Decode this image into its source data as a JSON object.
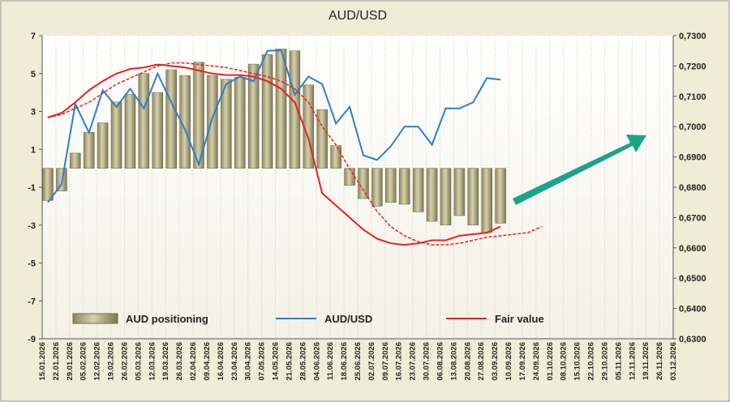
{
  "chart_data": {
    "type": "combo",
    "title": "AUD/USD",
    "categories": [
      "15.01.2026",
      "22.01.2026",
      "29.01.2026",
      "05.02.2026",
      "12.02.2026",
      "19.02.2026",
      "26.02.2026",
      "05.03.2026",
      "12.03.2026",
      "19.03.2026",
      "26.03.2026",
      "02.04.2026",
      "09.04.2026",
      "16.04.2026",
      "23.04.2026",
      "30.04.2026",
      "07.05.2026",
      "14.05.2026",
      "21.05.2026",
      "28.05.2026",
      "04.06.2026",
      "11.06.2026",
      "18.06.2026",
      "25.06.2026",
      "02.07.2026",
      "09.07.2026",
      "16.07.2026",
      "23.07.2026",
      "30.07.2026",
      "06.08.2026",
      "13.08.2026",
      "20.08.2026",
      "27.08.2026",
      "03.09.2026",
      "10.09.2026",
      "17.09.2026",
      "24.09.2026",
      "01.10.2026",
      "08.10.2026",
      "15.10.2026",
      "22.10.2026",
      "29.10.2026",
      "05.11.2026",
      "12.11.2026",
      "19.11.2026",
      "26.11.2026",
      "03.12.2026"
    ],
    "ylim": [
      -9,
      7
    ],
    "yticks": [
      7,
      5,
      3,
      1,
      -1,
      -3,
      -5,
      -7,
      -9
    ],
    "y2lim": [
      0.63,
      0.73
    ],
    "y2ticks": [
      {
        "value": 0.73,
        "label": "0,7300"
      },
      {
        "value": 0.72,
        "label": "0,7200"
      },
      {
        "value": 0.71,
        "label": "0,7100"
      },
      {
        "value": 0.7,
        "label": "0,7000"
      },
      {
        "value": 0.69,
        "label": "0,6900"
      },
      {
        "value": 0.68,
        "label": "0,6800"
      },
      {
        "value": 0.67,
        "label": "0,6700"
      },
      {
        "value": 0.66,
        "label": "0,6600"
      },
      {
        "value": 0.65,
        "label": "0,6500"
      },
      {
        "value": 0.64,
        "label": "0,6400"
      },
      {
        "value": 0.63,
        "label": "0,6300"
      }
    ],
    "series": [
      {
        "name": "AUD positioning",
        "kind": "bar",
        "color": "#b9b189",
        "values": [
          -1.7,
          -1.2,
          0.8,
          1.9,
          2.4,
          3.5,
          3.9,
          5.0,
          4.0,
          5.2,
          4.9,
          5.6,
          4.9,
          4.7,
          4.8,
          5.5,
          6.0,
          6.3,
          6.2,
          4.4,
          3.1,
          1.2,
          -0.9,
          -1.6,
          -2.0,
          -1.8,
          -1.9,
          -2.3,
          -2.8,
          -3.0,
          -2.5,
          -3.0,
          -3.4,
          -2.9,
          null,
          null,
          null,
          null,
          null,
          null,
          null,
          null,
          null,
          null,
          null,
          null,
          null
        ]
      },
      {
        "name": "AUD/USD",
        "kind": "line",
        "axis": "y2",
        "color": "#2e7fc7",
        "values": [
          0.675,
          0.681,
          0.7075,
          0.698,
          0.712,
          0.7065,
          0.7125,
          0.706,
          0.7175,
          0.708,
          0.699,
          0.6875,
          0.703,
          0.714,
          0.7165,
          0.715,
          0.725,
          0.7252,
          0.7105,
          0.7165,
          0.714,
          0.701,
          0.7065,
          0.6905,
          0.689,
          0.6935,
          0.7,
          0.7,
          0.694,
          0.706,
          0.706,
          0.708,
          0.716,
          0.7155,
          null,
          null,
          null,
          null,
          null,
          null,
          null,
          null,
          null,
          null,
          null,
          null,
          null
        ]
      },
      {
        "name": "Fair value",
        "kind": "line",
        "axis": "y2",
        "color": "#e8221c",
        "values": [
          0.703,
          0.7045,
          0.708,
          0.712,
          0.715,
          0.7175,
          0.719,
          0.7195,
          0.7205,
          0.72,
          0.7195,
          0.7185,
          0.7175,
          0.717,
          0.717,
          0.7165,
          0.715,
          0.7125,
          0.708,
          0.696,
          0.678,
          0.674,
          0.67,
          0.666,
          0.663,
          0.6615,
          0.661,
          0.6615,
          0.6625,
          0.6625,
          0.664,
          0.6645,
          0.665,
          0.667,
          null,
          null,
          null,
          null,
          null,
          null,
          null,
          null,
          null,
          null,
          null,
          null,
          null
        ]
      },
      {
        "kind": "line",
        "axis": "y2",
        "color": "#e8221c",
        "dashed": true,
        "values": [
          0.703,
          0.704,
          0.706,
          0.708,
          0.711,
          0.714,
          0.716,
          0.718,
          0.72,
          0.721,
          0.721,
          0.7205,
          0.72,
          0.7195,
          0.7185,
          0.7175,
          0.7165,
          0.715,
          0.7125,
          0.708,
          0.7,
          0.694,
          0.686,
          0.679,
          0.672,
          0.667,
          0.664,
          0.662,
          0.661,
          0.661,
          0.6615,
          0.6625,
          0.6635,
          0.664,
          0.6645,
          0.665,
          0.667,
          null,
          null,
          null,
          null,
          null,
          null,
          null,
          null,
          null,
          null
        ]
      }
    ]
  }
}
